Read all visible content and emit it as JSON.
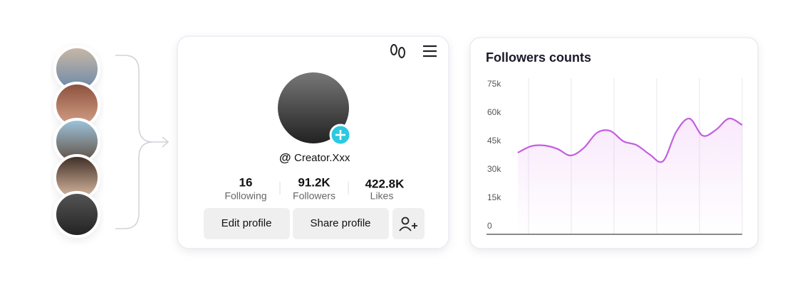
{
  "profile": {
    "handle_prefix": "@",
    "username": "Creator.Xxx",
    "stats": [
      {
        "value": "16",
        "label": "Following"
      },
      {
        "value": "91.2K",
        "label": "Followers"
      },
      {
        "value": "422.8K",
        "label": "Likes"
      }
    ],
    "buttons": [
      "Edit profile",
      "Share profile"
    ]
  },
  "chart_data": {
    "type": "line",
    "title": "Followers counts",
    "categories": [
      null,
      null,
      null,
      null,
      null,
      null,
      null,
      null,
      null,
      null,
      null,
      null,
      null,
      null,
      null,
      null,
      null,
      null
    ],
    "series": [
      {
        "color": "#c45ee0",
        "values": [
          39000,
          42400,
          42800,
          41000,
          37500,
          41500,
          49500,
          50500,
          45000,
          43000,
          38000,
          34500,
          50000,
          57000,
          48000,
          51000,
          57000,
          53600
        ]
      }
    ],
    "ylim": [
      0,
      75000
    ],
    "yticks": [
      {
        "value": 0,
        "label": "0"
      },
      {
        "value": 15000,
        "label": "15k"
      },
      {
        "value": 30000,
        "label": "30k"
      },
      {
        "value": 45000,
        "label": "45k"
      },
      {
        "value": 60000,
        "label": "60k"
      },
      {
        "value": 75000,
        "label": "75k"
      }
    ],
    "grid": true
  }
}
